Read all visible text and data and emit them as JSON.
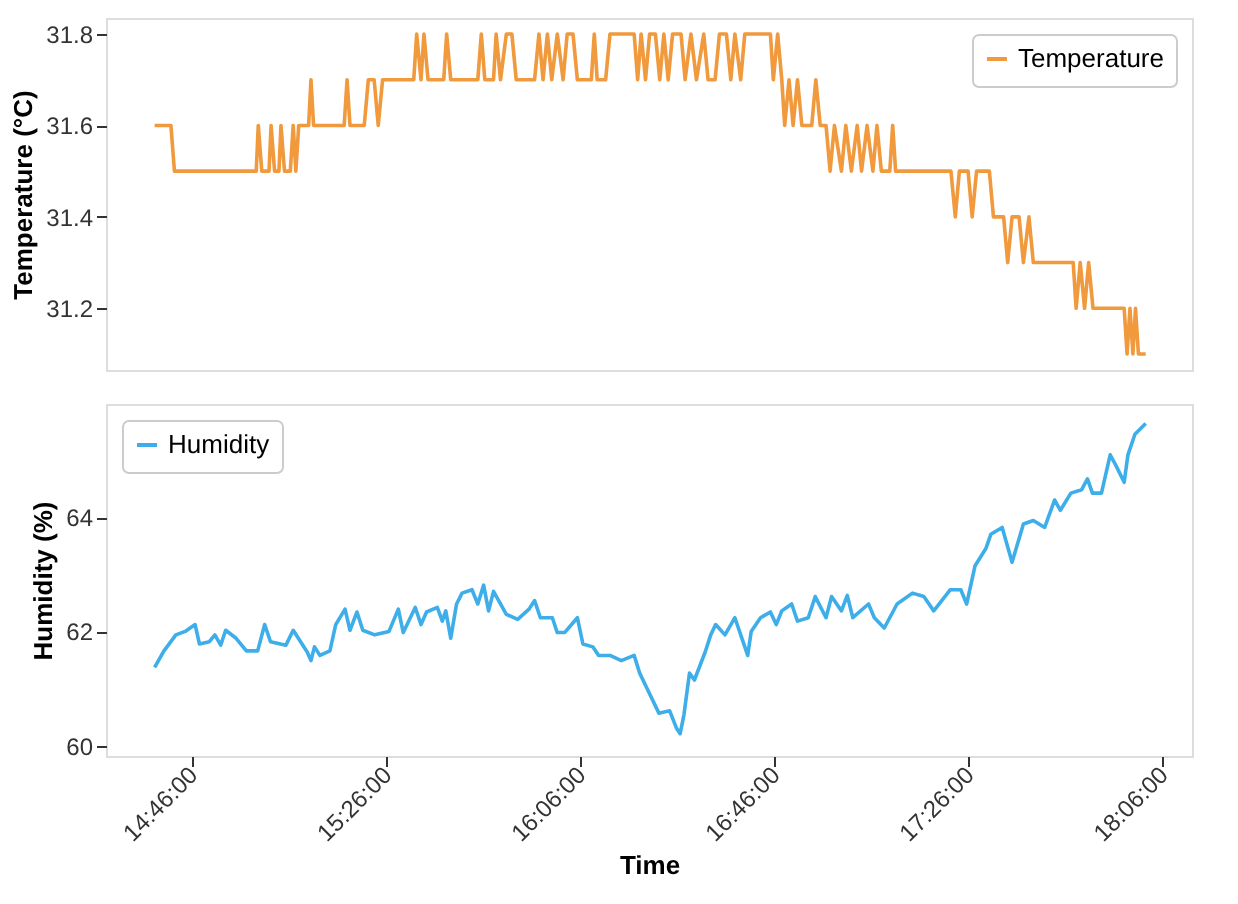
{
  "chart_data": [
    {
      "type": "line",
      "ylabel": "Temperature (°C)",
      "xlim": [
        14.47,
        18.2
      ],
      "ylim": [
        31.065,
        31.835
      ],
      "yticks": [
        31.2,
        31.4,
        31.6,
        31.8
      ],
      "tick_labels": "y",
      "grid": false,
      "legend": "top right",
      "line_style": "solid",
      "series": [
        {
          "name": "Temperature",
          "color": "#f0993d",
          "x": [
            14.637,
            14.693,
            14.705,
            14.986,
            14.993,
            15.005,
            15.03,
            15.037,
            15.049,
            15.064,
            15.071,
            15.083,
            15.103,
            15.113,
            15.122,
            15.132,
            15.166,
            15.174,
            15.183,
            15.288,
            15.298,
            15.308,
            15.357,
            15.371,
            15.391,
            15.405,
            15.42,
            15.527,
            15.537,
            15.552,
            15.562,
            15.576,
            15.63,
            15.64,
            15.654,
            15.747,
            15.759,
            15.771,
            15.801,
            15.81,
            15.825,
            15.845,
            15.864,
            15.879,
            15.942,
            15.957,
            15.971,
            15.986,
            16.001,
            16.02,
            16.04,
            16.054,
            16.074,
            16.089,
            16.137,
            16.147,
            16.157,
            16.186,
            16.201,
            16.284,
            16.296,
            16.308,
            16.323,
            16.337,
            16.357,
            16.372,
            16.386,
            16.401,
            16.416,
            16.445,
            16.459,
            16.479,
            16.498,
            16.523,
            16.538,
            16.562,
            16.577,
            16.601,
            16.616,
            16.63,
            16.65,
            16.664,
            16.752,
            16.762,
            16.777,
            16.791,
            16.801,
            16.816,
            16.83,
            16.845,
            16.86,
            16.894,
            16.908,
            16.923,
            16.943,
            16.957,
            16.972,
            16.996,
            17.011,
            17.03,
            17.05,
            17.065,
            17.084,
            17.104,
            17.118,
            17.133,
            17.162,
            17.172,
            17.182,
            17.372,
            17.387,
            17.401,
            17.431,
            17.445,
            17.46,
            17.504,
            17.518,
            17.553,
            17.567,
            17.582,
            17.606,
            17.621,
            17.64,
            17.655,
            17.792,
            17.802,
            17.816,
            17.831,
            17.845,
            17.86,
            17.967,
            17.977,
            17.987,
            17.997,
            18.006,
            18.016,
            18.041
          ],
          "values": [
            31.6,
            31.6,
            31.5,
            31.5,
            31.6,
            31.5,
            31.5,
            31.6,
            31.5,
            31.5,
            31.6,
            31.5,
            31.5,
            31.6,
            31.5,
            31.6,
            31.6,
            31.7,
            31.6,
            31.6,
            31.7,
            31.6,
            31.6,
            31.7,
            31.7,
            31.6,
            31.7,
            31.7,
            31.8,
            31.7,
            31.8,
            31.7,
            31.7,
            31.8,
            31.7,
            31.7,
            31.8,
            31.7,
            31.7,
            31.8,
            31.7,
            31.8,
            31.8,
            31.7,
            31.7,
            31.8,
            31.7,
            31.8,
            31.7,
            31.8,
            31.7,
            31.8,
            31.8,
            31.7,
            31.7,
            31.8,
            31.7,
            31.7,
            31.8,
            31.8,
            31.7,
            31.8,
            31.7,
            31.8,
            31.8,
            31.7,
            31.8,
            31.7,
            31.8,
            31.8,
            31.7,
            31.8,
            31.7,
            31.8,
            31.7,
            31.7,
            31.8,
            31.8,
            31.7,
            31.8,
            31.7,
            31.8,
            31.8,
            31.7,
            31.8,
            31.7,
            31.6,
            31.7,
            31.6,
            31.7,
            31.6,
            31.6,
            31.7,
            31.6,
            31.6,
            31.5,
            31.6,
            31.5,
            31.6,
            31.5,
            31.6,
            31.5,
            31.6,
            31.5,
            31.6,
            31.5,
            31.5,
            31.6,
            31.5,
            31.5,
            31.4,
            31.5,
            31.5,
            31.4,
            31.5,
            31.5,
            31.4,
            31.4,
            31.3,
            31.4,
            31.4,
            31.3,
            31.4,
            31.3,
            31.3,
            31.2,
            31.3,
            31.2,
            31.3,
            31.2,
            31.2,
            31.1,
            31.2,
            31.1,
            31.2,
            31.1,
            31.1
          ]
        }
      ]
    },
    {
      "type": "line",
      "xlabel": "Time",
      "ylabel": "Humidity (%)",
      "xlim": [
        14.47,
        18.2
      ],
      "xticks": [
        {
          "value": 14.7667,
          "label": "14:46:00"
        },
        {
          "value": 15.4333,
          "label": "15:26:00"
        },
        {
          "value": 16.1,
          "label": "16:06:00"
        },
        {
          "value": 16.7667,
          "label": "16:46:00"
        },
        {
          "value": 17.4333,
          "label": "17:26:00"
        },
        {
          "value": 18.1,
          "label": "18:06:00"
        }
      ],
      "ylim": [
        59.82,
        65.98
      ],
      "yticks": [
        60,
        62,
        64
      ],
      "grid": false,
      "legend": "top left",
      "line_style": "solid",
      "series": [
        {
          "name": "Humidity",
          "color": "#3daee9",
          "x": [
            14.637,
            14.669,
            14.71,
            14.742,
            14.776,
            14.791,
            14.825,
            14.844,
            14.864,
            14.881,
            14.917,
            14.952,
            14.991,
            15.015,
            15.035,
            15.088,
            15.113,
            15.161,
            15.174,
            15.186,
            15.205,
            15.239,
            15.259,
            15.291,
            15.308,
            15.332,
            15.352,
            15.393,
            15.442,
            15.474,
            15.491,
            15.532,
            15.552,
            15.571,
            15.608,
            15.625,
            15.637,
            15.654,
            15.674,
            15.693,
            15.727,
            15.747,
            15.767,
            15.784,
            15.801,
            15.845,
            15.884,
            15.923,
            15.942,
            15.962,
            16.003,
            16.02,
            16.045,
            16.089,
            16.108,
            16.142,
            16.162,
            16.201,
            16.24,
            16.284,
            16.303,
            16.337,
            16.369,
            16.406,
            16.43,
            16.442,
            16.455,
            16.474,
            16.491,
            16.528,
            16.547,
            16.564,
            16.596,
            16.63,
            16.662,
            16.674,
            16.686,
            16.718,
            16.752,
            16.772,
            16.791,
            16.825,
            16.845,
            16.882,
            16.906,
            16.943,
            16.962,
            16.996,
            17.016,
            17.035,
            17.089,
            17.109,
            17.143,
            17.187,
            17.24,
            17.279,
            17.313,
            17.37,
            17.406,
            17.426,
            17.455,
            17.492,
            17.509,
            17.548,
            17.582,
            17.621,
            17.655,
            17.694,
            17.728,
            17.748,
            17.784,
            17.821,
            17.841,
            17.858,
            17.889,
            17.919,
            17.938,
            17.967,
            17.98,
            18.004,
            18.041
          ],
          "values": [
            61.37,
            61.66,
            61.94,
            62.0,
            62.12,
            61.78,
            61.82,
            61.94,
            61.76,
            62.02,
            61.88,
            61.66,
            61.66,
            62.12,
            61.82,
            61.76,
            62.02,
            61.64,
            61.49,
            61.73,
            61.58,
            61.66,
            62.12,
            62.39,
            62.02,
            62.34,
            62.02,
            61.94,
            62.0,
            62.39,
            61.98,
            62.42,
            62.12,
            62.34,
            62.42,
            62.18,
            62.36,
            61.88,
            62.48,
            62.67,
            62.73,
            62.48,
            62.81,
            62.36,
            62.7,
            62.3,
            62.21,
            62.39,
            62.54,
            62.24,
            62.24,
            61.98,
            61.98,
            62.24,
            61.78,
            61.73,
            61.58,
            61.58,
            61.49,
            61.58,
            61.27,
            60.91,
            60.57,
            60.61,
            60.3,
            60.21,
            60.54,
            61.27,
            61.15,
            61.64,
            61.94,
            62.12,
            61.94,
            62.24,
            61.76,
            61.58,
            62.0,
            62.24,
            62.34,
            62.12,
            62.36,
            62.48,
            62.18,
            62.24,
            62.61,
            62.24,
            62.61,
            62.36,
            62.63,
            62.24,
            62.48,
            62.24,
            62.06,
            62.48,
            62.67,
            62.61,
            62.36,
            62.73,
            62.73,
            62.48,
            63.15,
            63.45,
            63.7,
            63.82,
            63.21,
            63.88,
            63.94,
            63.82,
            64.3,
            64.12,
            64.42,
            64.48,
            64.67,
            64.42,
            64.42,
            65.09,
            64.91,
            64.61,
            65.09,
            65.45,
            65.64
          ]
        }
      ]
    }
  ]
}
